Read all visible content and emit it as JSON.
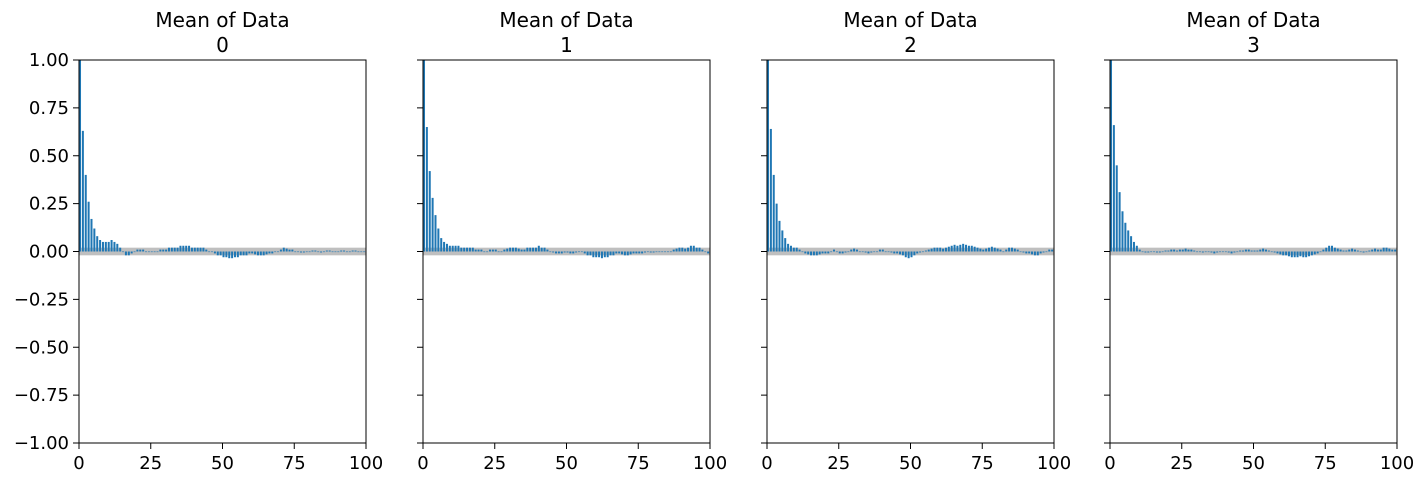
{
  "chart_data": [
    {
      "type": "bar",
      "title": "Mean of Data",
      "subtitle": "0",
      "xlim": [
        0,
        100
      ],
      "ylim": [
        -1,
        1
      ],
      "xticks": [
        0,
        25,
        50,
        75,
        100
      ],
      "yticks": [
        -1.0,
        -0.75,
        -0.5,
        -0.25,
        0.0,
        0.25,
        0.5,
        0.75,
        1.0
      ],
      "ytick_labels": [
        "−1.00",
        "−0.75",
        "−0.50",
        "−0.25",
        "0.00",
        "0.25",
        "0.50",
        "0.75",
        "1.00"
      ],
      "ci_band": [
        -0.02,
        0.02
      ],
      "x": [
        0,
        1,
        2,
        3,
        4,
        5,
        6,
        7,
        8,
        9,
        10,
        11,
        12,
        13,
        14,
        15,
        16,
        17,
        18,
        19,
        20,
        21,
        22,
        23,
        24,
        25,
        26,
        27,
        28,
        29,
        30,
        31,
        32,
        33,
        34,
        35,
        36,
        37,
        38,
        39,
        40,
        41,
        42,
        43,
        44,
        45,
        46,
        47,
        48,
        49,
        50,
        51,
        52,
        53,
        54,
        55,
        56,
        57,
        58,
        59,
        60,
        61,
        62,
        63,
        64,
        65,
        66,
        67,
        68,
        69,
        70,
        71,
        72,
        73,
        74,
        75,
        76,
        77,
        78,
        79,
        80,
        81,
        82,
        83,
        84,
        85,
        86,
        87,
        88,
        89,
        90,
        91,
        92,
        93,
        94,
        95,
        96,
        97,
        98,
        99
      ],
      "values": [
        1.0,
        0.63,
        0.4,
        0.26,
        0.17,
        0.12,
        0.08,
        0.06,
        0.05,
        0.05,
        0.05,
        0.06,
        0.05,
        0.04,
        0.02,
        0.0,
        -0.02,
        -0.02,
        -0.01,
        0.0,
        0.01,
        0.01,
        0.01,
        0.0,
        0.0,
        0.0,
        0.0,
        0.0,
        0.01,
        0.01,
        0.01,
        0.02,
        0.02,
        0.02,
        0.02,
        0.03,
        0.03,
        0.03,
        0.03,
        0.02,
        0.02,
        0.02,
        0.02,
        0.02,
        0.01,
        0.0,
        0.0,
        -0.01,
        -0.02,
        -0.02,
        -0.03,
        -0.03,
        -0.035,
        -0.035,
        -0.03,
        -0.03,
        -0.02,
        -0.02,
        -0.02,
        -0.01,
        -0.01,
        -0.015,
        -0.02,
        -0.02,
        -0.02,
        -0.015,
        -0.01,
        -0.01,
        0.0,
        0.0,
        0.01,
        0.02,
        0.015,
        0.01,
        0.01,
        0.0,
        0.0,
        -0.005,
        -0.005,
        0.0,
        0.0,
        0.005,
        0.005,
        0.0,
        -0.005,
        0.0,
        0.005,
        0.005,
        0.0,
        0.0,
        0.0,
        0.005,
        0.005,
        0.0,
        0.0,
        0.005,
        0.005,
        0.0,
        0.0,
        0.0
      ],
      "bar_color": "#1f77b4",
      "band_color": "#bfbfbf"
    },
    {
      "type": "bar",
      "title": "Mean of Data",
      "subtitle": "1",
      "xlim": [
        0,
        100
      ],
      "ylim": [
        -1,
        1
      ],
      "xticks": [
        0,
        25,
        50,
        75,
        100
      ],
      "yticks": [
        -1.0,
        -0.75,
        -0.5,
        -0.25,
        0.0,
        0.25,
        0.5,
        0.75,
        1.0
      ],
      "ytick_labels": [
        "",
        "",
        "",
        "",
        "",
        "",
        "",
        "",
        ""
      ],
      "ci_band": [
        -0.02,
        0.02
      ],
      "x": [
        0,
        1,
        2,
        3,
        4,
        5,
        6,
        7,
        8,
        9,
        10,
        11,
        12,
        13,
        14,
        15,
        16,
        17,
        18,
        19,
        20,
        21,
        22,
        23,
        24,
        25,
        26,
        27,
        28,
        29,
        30,
        31,
        32,
        33,
        34,
        35,
        36,
        37,
        38,
        39,
        40,
        41,
        42,
        43,
        44,
        45,
        46,
        47,
        48,
        49,
        50,
        51,
        52,
        53,
        54,
        55,
        56,
        57,
        58,
        59,
        60,
        61,
        62,
        63,
        64,
        65,
        66,
        67,
        68,
        69,
        70,
        71,
        72,
        73,
        74,
        75,
        76,
        77,
        78,
        79,
        80,
        81,
        82,
        83,
        84,
        85,
        86,
        87,
        88,
        89,
        90,
        91,
        92,
        93,
        94,
        95,
        96,
        97,
        98,
        99
      ],
      "values": [
        1.0,
        0.65,
        0.42,
        0.28,
        0.19,
        0.12,
        0.07,
        0.05,
        0.04,
        0.03,
        0.03,
        0.03,
        0.03,
        0.02,
        0.02,
        0.02,
        0.02,
        0.02,
        0.01,
        0.01,
        0.01,
        0.0,
        0.0,
        0.01,
        0.01,
        0.01,
        0.0,
        0.0,
        0.01,
        0.015,
        0.02,
        0.02,
        0.02,
        0.015,
        0.01,
        0.01,
        0.02,
        0.02,
        0.02,
        0.02,
        0.03,
        0.02,
        0.02,
        0.01,
        0.0,
        -0.005,
        -0.01,
        -0.01,
        -0.01,
        -0.005,
        -0.005,
        -0.01,
        -0.01,
        -0.005,
        0.0,
        0.0,
        -0.01,
        -0.02,
        -0.02,
        -0.03,
        -0.03,
        -0.03,
        -0.035,
        -0.03,
        -0.03,
        -0.02,
        -0.02,
        -0.01,
        -0.01,
        -0.015,
        -0.02,
        -0.02,
        -0.015,
        -0.01,
        -0.01,
        -0.01,
        -0.01,
        -0.005,
        0.0,
        -0.005,
        -0.005,
        0.0,
        0.0,
        0.0,
        0.0,
        0.0,
        0.0,
        0.01,
        0.015,
        0.02,
        0.02,
        0.015,
        0.02,
        0.03,
        0.03,
        0.02,
        0.02,
        0.01,
        0.0,
        -0.01
      ],
      "bar_color": "#1f77b4",
      "band_color": "#bfbfbf"
    },
    {
      "type": "bar",
      "title": "Mean of Data",
      "subtitle": "2",
      "xlim": [
        0,
        100
      ],
      "ylim": [
        -1,
        1
      ],
      "xticks": [
        0,
        25,
        50,
        75,
        100
      ],
      "yticks": [
        -1.0,
        -0.75,
        -0.5,
        -0.25,
        0.0,
        0.25,
        0.5,
        0.75,
        1.0
      ],
      "ytick_labels": [
        "",
        "",
        "",
        "",
        "",
        "",
        "",
        "",
        ""
      ],
      "ci_band": [
        -0.02,
        0.02
      ],
      "x": [
        0,
        1,
        2,
        3,
        4,
        5,
        6,
        7,
        8,
        9,
        10,
        11,
        12,
        13,
        14,
        15,
        16,
        17,
        18,
        19,
        20,
        21,
        22,
        23,
        24,
        25,
        26,
        27,
        28,
        29,
        30,
        31,
        32,
        33,
        34,
        35,
        36,
        37,
        38,
        39,
        40,
        41,
        42,
        43,
        44,
        45,
        46,
        47,
        48,
        49,
        50,
        51,
        52,
        53,
        54,
        55,
        56,
        57,
        58,
        59,
        60,
        61,
        62,
        63,
        64,
        65,
        66,
        67,
        68,
        69,
        70,
        71,
        72,
        73,
        74,
        75,
        76,
        77,
        78,
        79,
        80,
        81,
        82,
        83,
        84,
        85,
        86,
        87,
        88,
        89,
        90,
        91,
        92,
        93,
        94,
        95,
        96,
        97,
        98,
        99
      ],
      "values": [
        1.0,
        0.64,
        0.4,
        0.25,
        0.16,
        0.11,
        0.07,
        0.04,
        0.03,
        0.02,
        0.02,
        0.01,
        0.0,
        -0.01,
        -0.015,
        -0.02,
        -0.02,
        -0.02,
        -0.015,
        -0.01,
        -0.01,
        -0.01,
        0.0,
        0.01,
        0.0,
        -0.01,
        -0.01,
        -0.005,
        0.0,
        0.01,
        0.015,
        0.01,
        0.0,
        0.0,
        -0.005,
        -0.01,
        -0.005,
        0.0,
        0.0,
        0.01,
        0.01,
        0.0,
        0.0,
        -0.005,
        -0.01,
        -0.01,
        -0.015,
        -0.02,
        -0.03,
        -0.035,
        -0.03,
        -0.02,
        -0.01,
        -0.005,
        0.0,
        0.005,
        0.01,
        0.015,
        0.02,
        0.02,
        0.02,
        0.015,
        0.02,
        0.025,
        0.03,
        0.035,
        0.03,
        0.035,
        0.04,
        0.035,
        0.03,
        0.03,
        0.025,
        0.02,
        0.015,
        0.01,
        0.015,
        0.02,
        0.025,
        0.02,
        0.015,
        0.01,
        0.0,
        0.01,
        0.02,
        0.02,
        0.015,
        0.01,
        0.0,
        -0.005,
        -0.01,
        -0.01,
        -0.015,
        -0.02,
        -0.02,
        -0.01,
        -0.005,
        0.0,
        0.01,
        0.01
      ],
      "bar_color": "#1f77b4",
      "band_color": "#bfbfbf"
    },
    {
      "type": "bar",
      "title": "Mean of Data",
      "subtitle": "3",
      "xlim": [
        0,
        100
      ],
      "ylim": [
        -1,
        1
      ],
      "xticks": [
        0,
        25,
        50,
        75,
        100
      ],
      "yticks": [
        -1.0,
        -0.75,
        -0.5,
        -0.25,
        0.0,
        0.25,
        0.5,
        0.75,
        1.0
      ],
      "ytick_labels": [
        "",
        "",
        "",
        "",
        "",
        "",
        "",
        "",
        ""
      ],
      "ci_band": [
        -0.02,
        0.02
      ],
      "x": [
        0,
        1,
        2,
        3,
        4,
        5,
        6,
        7,
        8,
        9,
        10,
        11,
        12,
        13,
        14,
        15,
        16,
        17,
        18,
        19,
        20,
        21,
        22,
        23,
        24,
        25,
        26,
        27,
        28,
        29,
        30,
        31,
        32,
        33,
        34,
        35,
        36,
        37,
        38,
        39,
        40,
        41,
        42,
        43,
        44,
        45,
        46,
        47,
        48,
        49,
        50,
        51,
        52,
        53,
        54,
        55,
        56,
        57,
        58,
        59,
        60,
        61,
        62,
        63,
        64,
        65,
        66,
        67,
        68,
        69,
        70,
        71,
        72,
        73,
        74,
        75,
        76,
        77,
        78,
        79,
        80,
        81,
        82,
        83,
        84,
        85,
        86,
        87,
        88,
        89,
        90,
        91,
        92,
        93,
        94,
        95,
        96,
        97,
        98,
        99
      ],
      "values": [
        1.0,
        0.66,
        0.45,
        0.31,
        0.21,
        0.15,
        0.11,
        0.08,
        0.05,
        0.03,
        0.01,
        0.0,
        -0.005,
        -0.005,
        0.0,
        0.0,
        -0.005,
        -0.005,
        0.0,
        0.005,
        0.005,
        0.01,
        0.01,
        0.005,
        0.01,
        0.01,
        0.015,
        0.01,
        0.01,
        0.005,
        0.0,
        0.0,
        -0.005,
        0.0,
        0.0,
        -0.005,
        -0.01,
        -0.005,
        0.0,
        0.0,
        0.0,
        -0.005,
        -0.01,
        -0.005,
        0.0,
        0.005,
        0.005,
        0.01,
        0.01,
        0.005,
        0.005,
        0.005,
        0.01,
        0.015,
        0.01,
        0.005,
        0.0,
        -0.005,
        -0.01,
        -0.015,
        -0.02,
        -0.02,
        -0.025,
        -0.03,
        -0.03,
        -0.03,
        -0.025,
        -0.03,
        -0.03,
        -0.025,
        -0.02,
        -0.015,
        -0.01,
        0.0,
        0.01,
        0.02,
        0.03,
        0.03,
        0.02,
        0.015,
        0.01,
        0.005,
        0.005,
        0.01,
        0.015,
        0.01,
        0.005,
        0.0,
        -0.005,
        0.0,
        0.005,
        0.01,
        0.015,
        0.01,
        0.01,
        0.02,
        0.02,
        0.015,
        0.01,
        0.01
      ],
      "bar_color": "#1f77b4",
      "band_color": "#bfbfbf"
    }
  ]
}
